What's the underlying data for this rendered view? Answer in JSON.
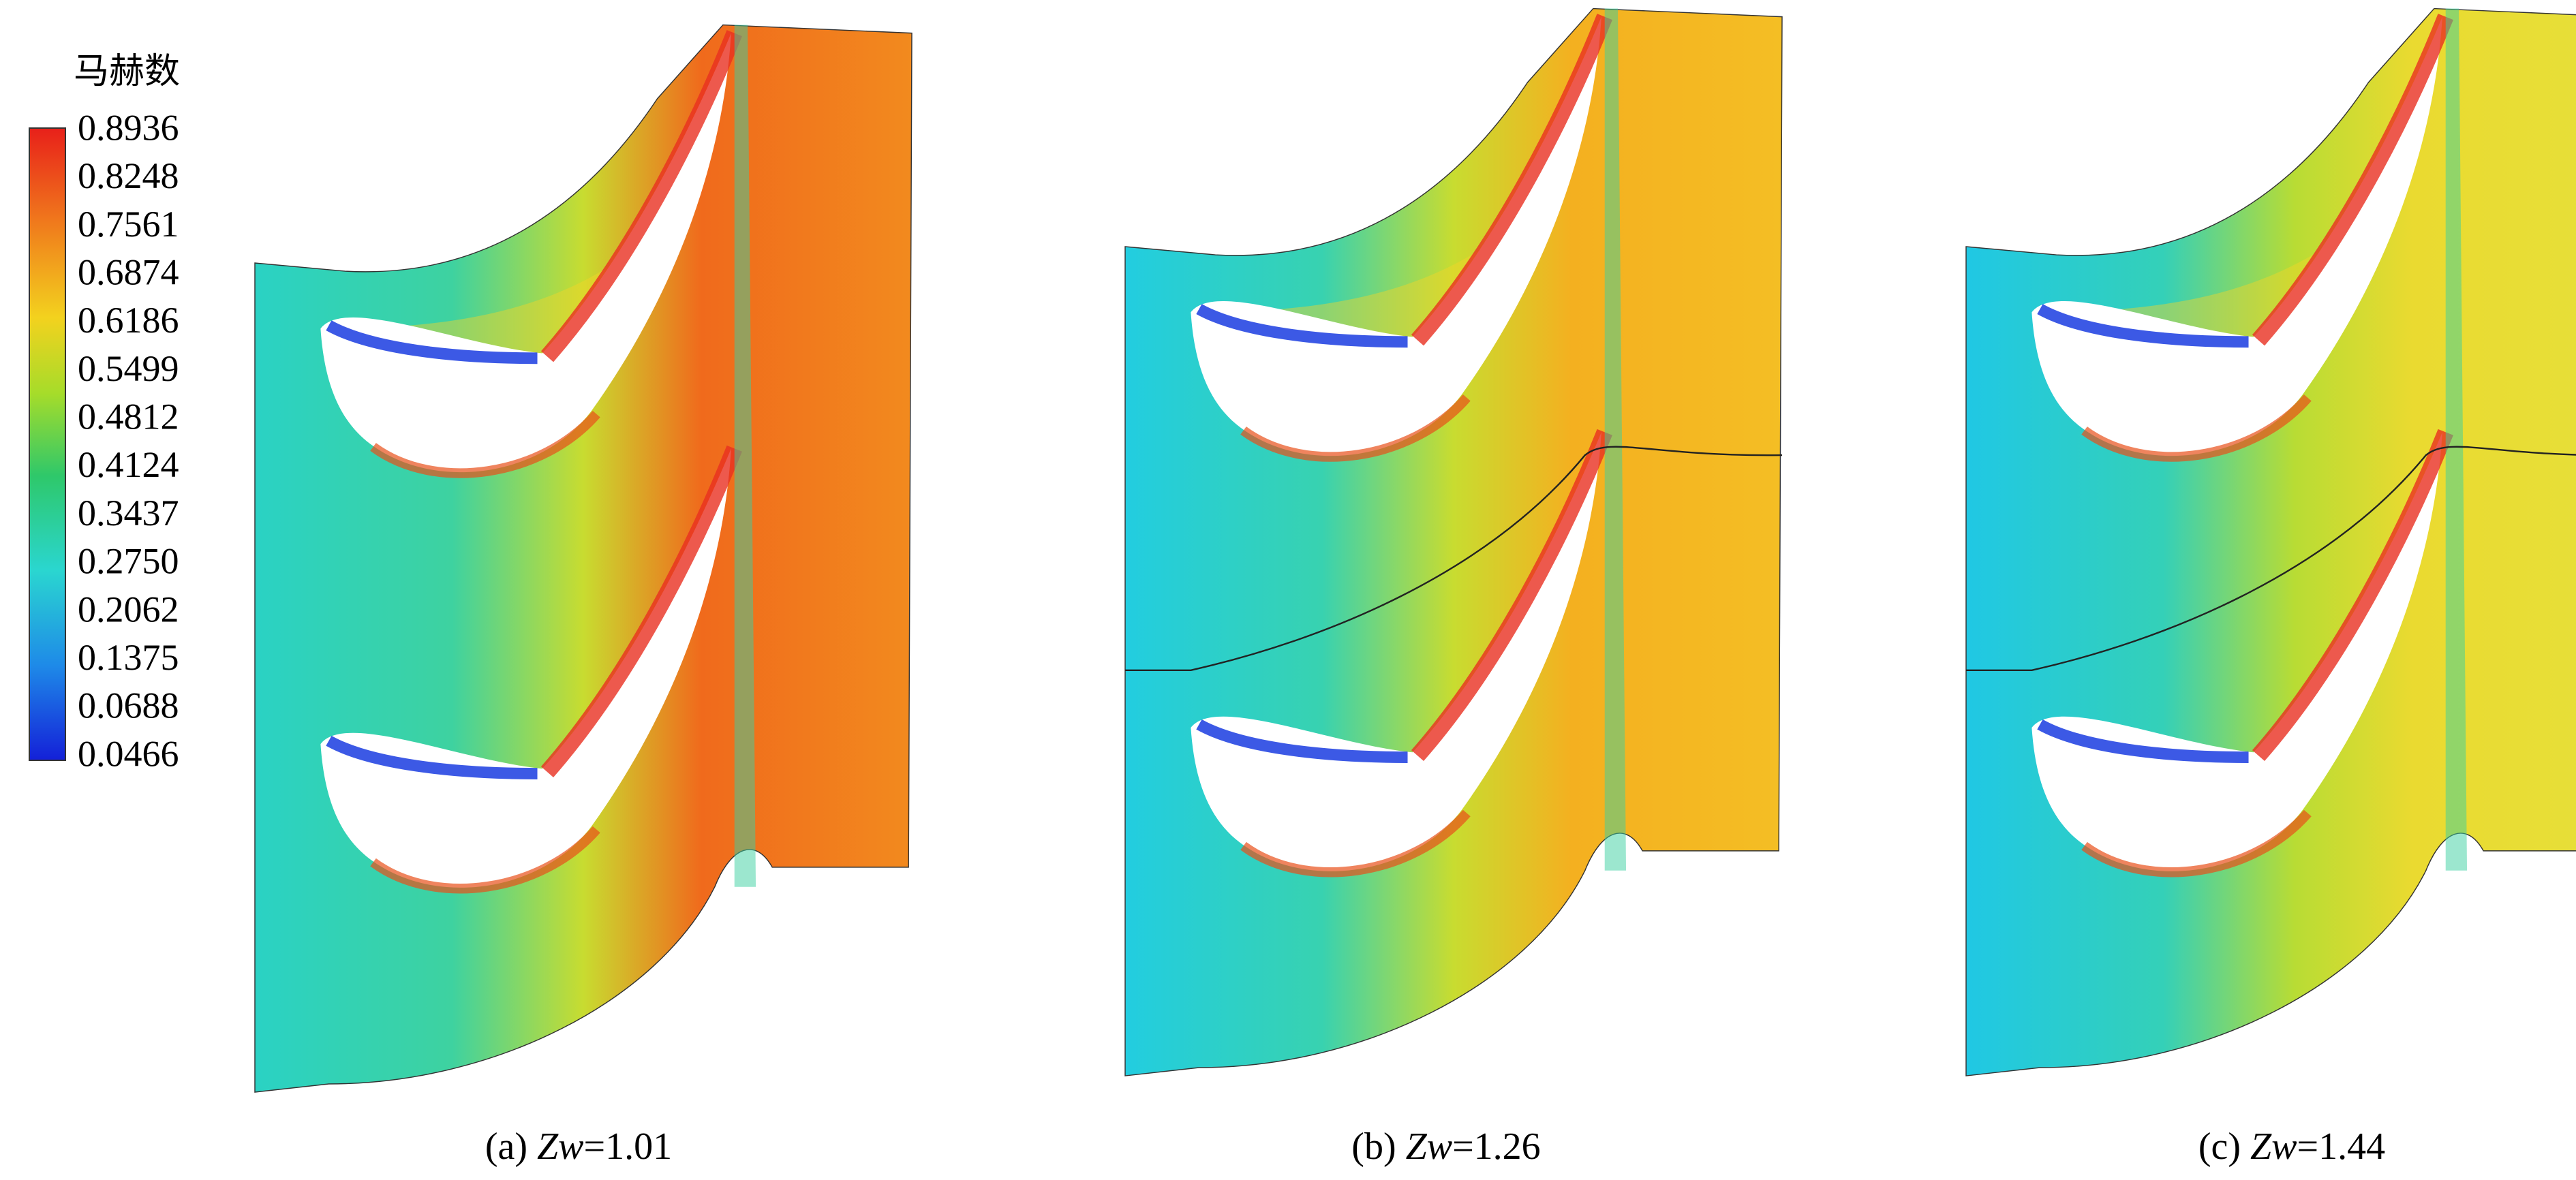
{
  "colorbar": {
    "title": "马赫数",
    "ticks": [
      "0.8936",
      "0.8248",
      "0.7561",
      "0.6874",
      "0.6186",
      "0.5499",
      "0.4812",
      "0.4124",
      "0.3437",
      "0.2750",
      "0.2062",
      "0.1375",
      "0.0688",
      "0.0466"
    ]
  },
  "panels": [
    {
      "prefix": "(a)",
      "variable": "Zw",
      "value": "=1.01"
    },
    {
      "prefix": "(b)",
      "variable": "Zw",
      "value": "=1.26"
    },
    {
      "prefix": "(c)",
      "variable": "Zw",
      "value": "=1.44"
    }
  ]
}
